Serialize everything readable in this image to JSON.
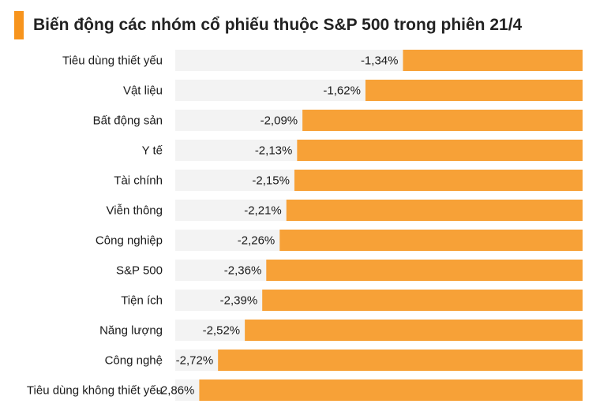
{
  "header": {
    "title": "Biến động các nhóm cổ phiếu thuộc S&P 500 trong phiên 21/4",
    "accent_color": "#F7941D"
  },
  "chart_data": {
    "type": "bar",
    "orientation": "horizontal",
    "title": "Biến động các nhóm cổ phiếu thuộc S&P 500 trong phiên 21/4",
    "categories": [
      "Tiêu dùng thiết yếu",
      "Vật liệu",
      "Bất động sản",
      "Y tế",
      "Tài chính",
      "Viễn thông",
      "Công nghiệp",
      "S&P 500",
      "Tiện ích",
      "Năng lượng",
      "Công nghệ",
      "Tiêu dùng không thiết yếu"
    ],
    "values": [
      -1.34,
      -1.62,
      -2.09,
      -2.13,
      -2.15,
      -2.21,
      -2.26,
      -2.36,
      -2.39,
      -2.52,
      -2.72,
      -2.86
    ],
    "value_labels": [
      "-1,34%",
      "-1,62%",
      "-2,09%",
      "-2,13%",
      "-2,15%",
      "-2,21%",
      "-2,26%",
      "-2,36%",
      "-2,39%",
      "-2,52%",
      "-2,72%",
      "-2,86%"
    ],
    "unit": "%",
    "bar_color": "#F7A137",
    "xlim": [
      -3.0,
      0
    ],
    "grid": false,
    "legend": "none"
  }
}
